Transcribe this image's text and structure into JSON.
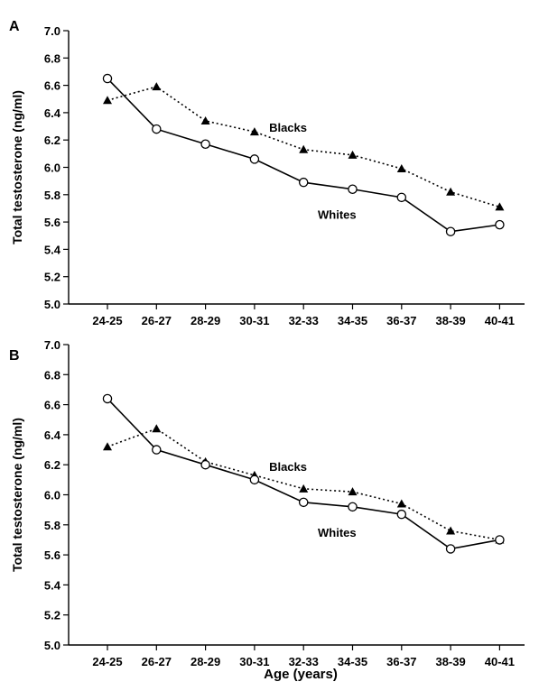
{
  "figure": {
    "xlabel": "Age (years)"
  },
  "chart_data": [
    {
      "type": "line",
      "panel_label": "A",
      "categories": [
        "24-25",
        "26-27",
        "28-29",
        "30-31",
        "32-33",
        "34-35",
        "36-37",
        "38-39",
        "40-41"
      ],
      "ylabel": "Total testosterone (ng/ml)",
      "xlabel": "",
      "ylim": [
        5.0,
        7.0
      ],
      "yticks": [
        "5.0",
        "5.2",
        "5.4",
        "5.6",
        "5.8",
        "6.0",
        "6.2",
        "6.4",
        "6.6",
        "6.8",
        "7.0"
      ],
      "grid": false,
      "series": [
        {
          "name": "Blacks",
          "marker": "filled-triangle",
          "line": "dotted",
          "values": [
            6.49,
            6.59,
            6.34,
            6.26,
            6.13,
            6.09,
            5.99,
            5.82,
            5.71
          ]
        },
        {
          "name": "Whites",
          "marker": "open-circle",
          "line": "solid",
          "values": [
            6.65,
            6.28,
            6.17,
            6.06,
            5.89,
            5.84,
            5.78,
            5.53,
            5.58
          ]
        }
      ],
      "annotations": [
        {
          "text": "Blacks",
          "series": "Blacks",
          "near_index": 4,
          "side": "above"
        },
        {
          "text": "Whites",
          "series": "Whites",
          "near_index": 5,
          "side": "below"
        }
      ]
    },
    {
      "type": "line",
      "panel_label": "B",
      "categories": [
        "24-25",
        "26-27",
        "28-29",
        "30-31",
        "32-33",
        "34-35",
        "36-37",
        "38-39",
        "40-41"
      ],
      "ylabel": "Total testosterone (ng/ml)",
      "xlabel": "Age (years)",
      "ylim": [
        5.0,
        7.0
      ],
      "yticks": [
        "5.0",
        "5.2",
        "5.4",
        "5.6",
        "5.8",
        "6.0",
        "6.2",
        "6.4",
        "6.6",
        "6.8",
        "7.0"
      ],
      "grid": false,
      "series": [
        {
          "name": "Blacks",
          "marker": "filled-triangle",
          "line": "dotted",
          "values": [
            6.32,
            6.44,
            6.22,
            6.13,
            6.04,
            6.02,
            5.94,
            5.76,
            5.7
          ]
        },
        {
          "name": "Whites",
          "marker": "open-circle",
          "line": "solid",
          "values": [
            6.64,
            6.3,
            6.2,
            6.1,
            5.95,
            5.92,
            5.87,
            5.64,
            5.7
          ]
        }
      ],
      "annotations": [
        {
          "text": "Blacks",
          "series": "Blacks",
          "near_index": 4,
          "side": "above"
        },
        {
          "text": "Whites",
          "series": "Whites",
          "near_index": 5,
          "side": "below"
        }
      ]
    }
  ]
}
